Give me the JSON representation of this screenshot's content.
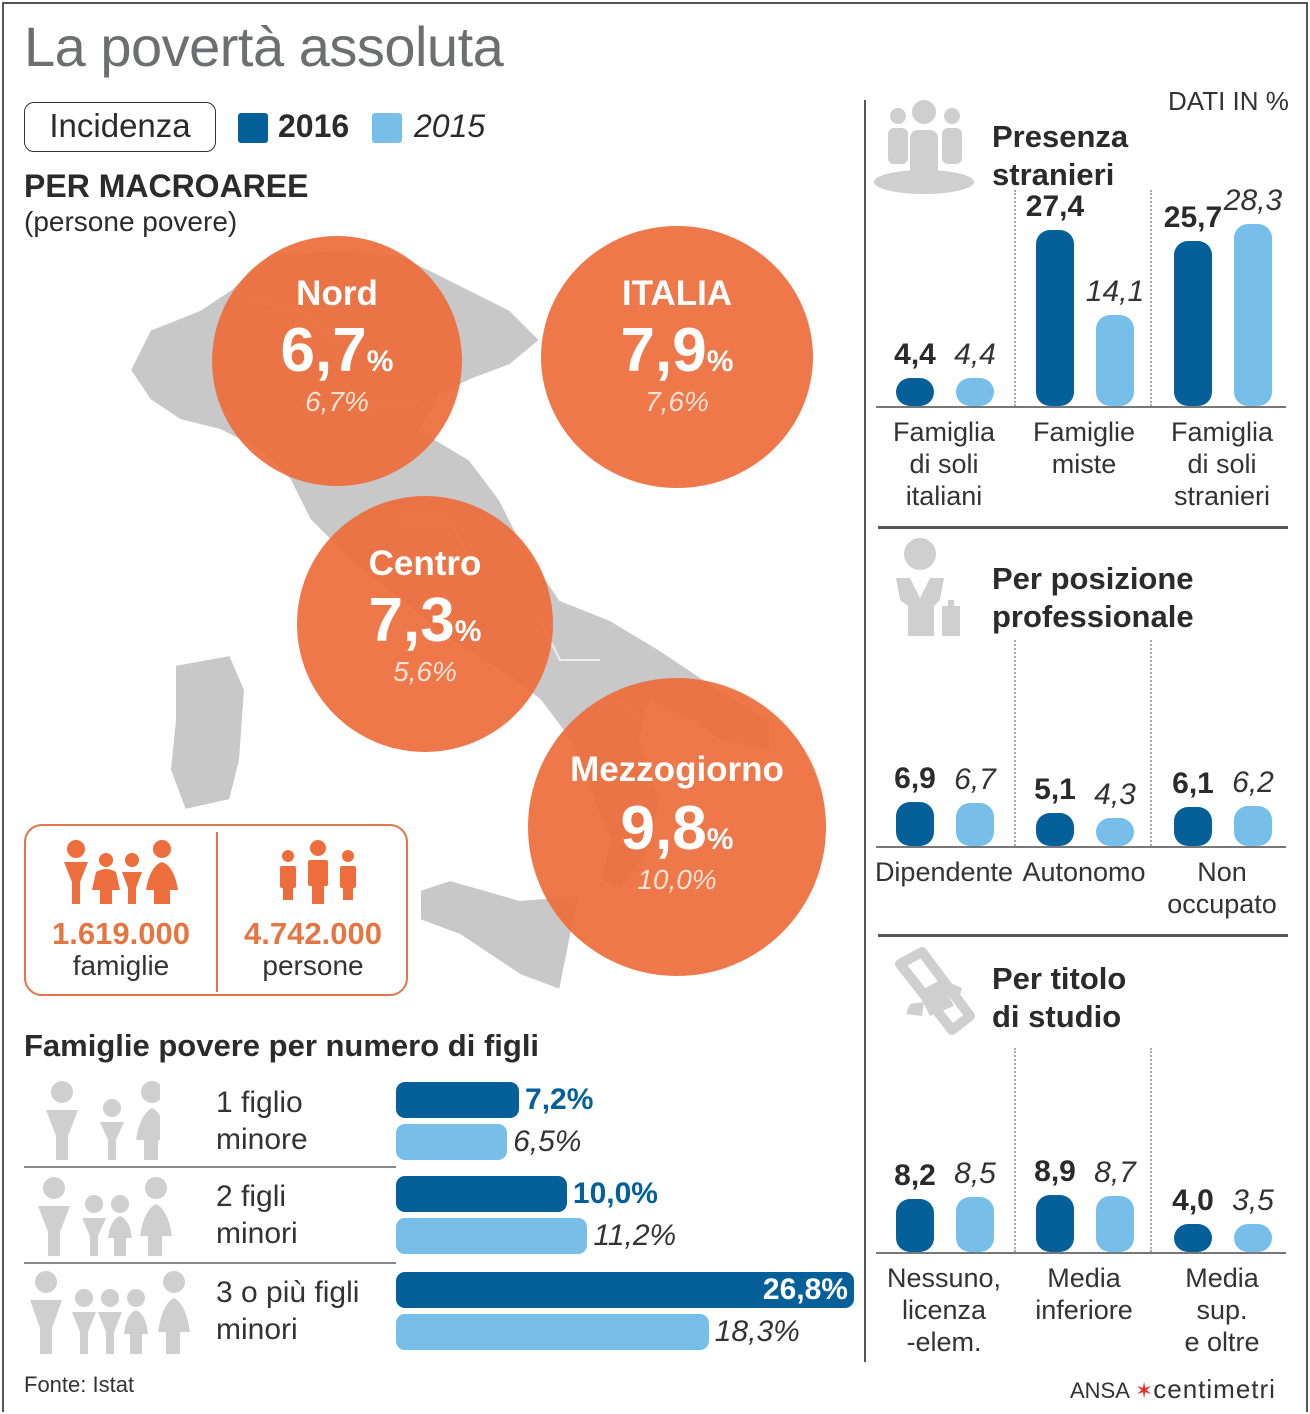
{
  "title": "La povertà assoluta",
  "legend": {
    "badge": "Incidenza",
    "series": [
      {
        "label": "2016",
        "color": "#05609a"
      },
      {
        "label": "2015",
        "color": "#77bee9"
      }
    ]
  },
  "macro": {
    "heading": "PER MACROAREE",
    "subheading": "(persone povere)",
    "areas": [
      {
        "name": "Nord",
        "value_2016": "6,7",
        "value_2015": "6,7%"
      },
      {
        "name": "ITALIA",
        "value_2016": "7,9",
        "value_2015": "7,6%"
      },
      {
        "name": "Centro",
        "value_2016": "7,3",
        "value_2015": "5,6%"
      },
      {
        "name": "Mezzogiorno",
        "value_2016": "9,8",
        "value_2015": "10,0%"
      }
    ],
    "pct_sign": "%",
    "circle_color": "#ed6e3c",
    "map_color": "#c8c8c8"
  },
  "totals": {
    "families": {
      "value": "1.619.000",
      "label": "famiglie",
      "icon": "family-icon"
    },
    "persons": {
      "value": "4.742.000",
      "label": "persone",
      "icon": "people-icon"
    },
    "color": "#e47644"
  },
  "children": {
    "heading": "Famiglie povere per numero di figli",
    "rows": [
      {
        "line1": "1 figlio",
        "line2": "minore",
        "v2016": 7.2,
        "l2016": "7,2%",
        "v2015": 6.5,
        "l2015": "6,5%"
      },
      {
        "line1": "2 figli",
        "line2": "minori",
        "v2016": 10.0,
        "l2016": "10,0%",
        "v2015": 11.2,
        "l2015": "11,2%"
      },
      {
        "line1": "3 o più figli",
        "line2": "minori",
        "v2016": 26.8,
        "l2016": "26,8%",
        "v2015": 18.3,
        "l2015": "18,3%"
      }
    ]
  },
  "source": "Fonte: Istat",
  "units_note": "DATI IN %",
  "brand": {
    "ansa": "ANSA",
    "centimetri": "centimetri"
  },
  "chart_data": [
    {
      "type": "bar",
      "title": "Presenza stranieri",
      "categories": [
        "Famiglia di soli italiani",
        "Famiglie miste",
        "Famiglia di soli stranieri"
      ],
      "category_lines": [
        [
          "Famiglia",
          "di soli",
          "italiani"
        ],
        [
          "Famiglie",
          "miste"
        ],
        [
          "Famiglia",
          "di soli",
          "stranieri"
        ]
      ],
      "series": [
        {
          "name": "2016",
          "values": [
            4.4,
            27.4,
            25.7
          ],
          "labels": [
            "4,4",
            "27,4",
            "25,7"
          ]
        },
        {
          "name": "2015",
          "values": [
            4.4,
            14.1,
            28.3
          ],
          "labels": [
            "4,4",
            "14,1",
            "28,3"
          ]
        }
      ],
      "ylim": [
        0,
        30
      ],
      "icon": "people-group-icon"
    },
    {
      "type": "bar",
      "title": "Per posizione professionale",
      "title_lines": [
        "Per posizione",
        "professionale"
      ],
      "categories": [
        "Dipendente",
        "Autonomo",
        "Non occupato"
      ],
      "category_lines": [
        [
          "Dipendente"
        ],
        [
          "Autonomo"
        ],
        [
          "Non",
          "occupato"
        ]
      ],
      "series": [
        {
          "name": "2016",
          "values": [
            6.9,
            5.1,
            6.1
          ],
          "labels": [
            "6,9",
            "5,1",
            "6,1"
          ]
        },
        {
          "name": "2015",
          "values": [
            6.7,
            4.3,
            6.2
          ],
          "labels": [
            "6,7",
            "4,3",
            "6,2"
          ]
        }
      ],
      "ylim": [
        0,
        30
      ],
      "icon": "worker-icon"
    },
    {
      "type": "bar",
      "title": "Per titolo di studio",
      "title_lines": [
        "Per titolo",
        "di studio"
      ],
      "categories": [
        "Nessuno, licenza elem.",
        "Media inferiore",
        "Media sup. e oltre"
      ],
      "category_lines": [
        [
          "Nessuno,",
          "licenza",
          "-elem."
        ],
        [
          "Media",
          "inferiore"
        ],
        [
          "Media",
          "sup.",
          "e oltre"
        ]
      ],
      "series": [
        {
          "name": "2016",
          "values": [
            8.2,
            8.9,
            4.0
          ],
          "labels": [
            "8,2",
            "8,9",
            "4,0"
          ]
        },
        {
          "name": "2015",
          "values": [
            8.5,
            8.7,
            3.5
          ],
          "labels": [
            "8,5",
            "8,7",
            "3,5"
          ]
        }
      ],
      "ylim": [
        0,
        30
      ],
      "icon": "diploma-icon"
    },
    {
      "type": "bar",
      "orientation": "horizontal",
      "title": "Famiglie povere per numero di figli",
      "categories": [
        "1 figlio minore",
        "2 figli minori",
        "3 o più figli minori"
      ],
      "series": [
        {
          "name": "2016",
          "values": [
            7.2,
            10.0,
            26.8
          ]
        },
        {
          "name": "2015",
          "values": [
            6.5,
            11.2,
            18.3
          ]
        }
      ]
    },
    {
      "type": "table",
      "title": "PER MACROAREE (persone povere)",
      "categories": [
        "Nord",
        "ITALIA",
        "Centro",
        "Mezzogiorno"
      ],
      "series": [
        {
          "name": "2016",
          "values": [
            6.7,
            7.9,
            7.3,
            9.8
          ]
        },
        {
          "name": "2015",
          "values": [
            6.7,
            7.6,
            5.6,
            10.0
          ]
        }
      ]
    }
  ]
}
